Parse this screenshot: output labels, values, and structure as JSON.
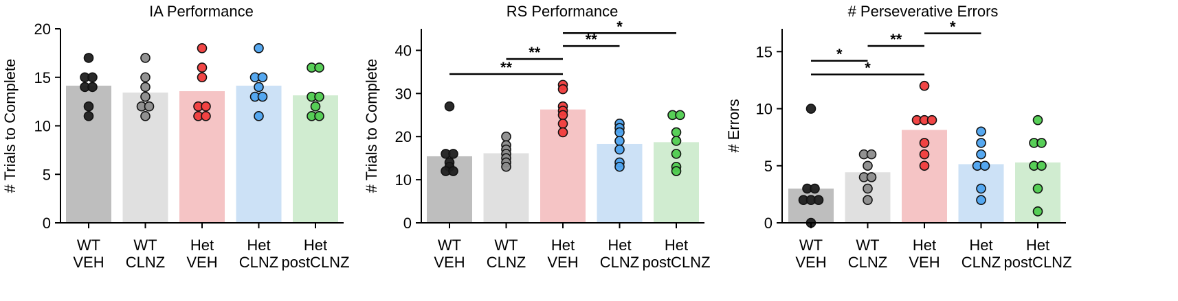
{
  "chart_data": [
    {
      "type": "bar",
      "title": "IA Performance",
      "ylabel": "# Trials to Complete",
      "xlabel": "",
      "ylim": [
        0,
        20
      ],
      "yticks": [
        0,
        5,
        10,
        15,
        20
      ],
      "categories": [
        [
          "WT",
          "VEH"
        ],
        [
          "WT",
          "CLNZ"
        ],
        [
          "Het",
          "VEH"
        ],
        [
          "Het",
          "CLNZ"
        ],
        [
          "Het",
          "postCLNZ"
        ]
      ],
      "values": [
        14.14,
        13.43,
        13.57,
        14.14,
        13.14
      ],
      "points": [
        [
          17,
          15,
          15,
          14,
          14,
          12,
          11
        ],
        [
          17,
          15,
          14,
          13,
          12,
          12,
          11
        ],
        [
          18,
          16,
          15,
          12,
          12,
          11,
          11
        ],
        [
          18,
          15,
          15,
          14,
          13,
          13,
          11
        ],
        [
          16,
          16,
          13,
          13,
          12,
          11,
          11
        ]
      ],
      "significance": []
    },
    {
      "type": "bar",
      "title": "RS Performance",
      "ylabel": "# Trials to Complete",
      "xlabel": "",
      "ylim": [
        0,
        45
      ],
      "yticks": [
        0,
        10,
        20,
        30,
        40
      ],
      "categories": [
        [
          "WT",
          "VEH"
        ],
        [
          "WT",
          "CLNZ"
        ],
        [
          "Het",
          "VEH"
        ],
        [
          "Het",
          "CLNZ"
        ],
        [
          "Het",
          "postCLNZ"
        ]
      ],
      "values": [
        15.43,
        16.14,
        26.29,
        18.29,
        18.71
      ],
      "points": [
        [
          27,
          16,
          16,
          14,
          13,
          12,
          12
        ],
        [
          20,
          18,
          17,
          16,
          15,
          14,
          13
        ],
        [
          32,
          31,
          27,
          26,
          25,
          23,
          21
        ],
        [
          23,
          22,
          21,
          19,
          17,
          14,
          13
        ],
        [
          25,
          25,
          21,
          19,
          16,
          13,
          12
        ]
      ],
      "significance": [
        {
          "from": 0,
          "to": 2,
          "y": 34.5,
          "label": "**"
        },
        {
          "from": 1,
          "to": 2,
          "y": 38.0,
          "label": "**"
        },
        {
          "from": 2,
          "to": 3,
          "y": 41.0,
          "label": "**"
        },
        {
          "from": 2,
          "to": 4,
          "y": 44.0,
          "label": "*"
        }
      ]
    },
    {
      "type": "bar",
      "title": "# Perseverative Errors",
      "ylabel": "# Errors",
      "xlabel": "",
      "ylim": [
        0,
        17
      ],
      "yticks": [
        0,
        5,
        10,
        15
      ],
      "categories": [
        [
          "WT",
          "VEH"
        ],
        [
          "WT",
          "CLNZ"
        ],
        [
          "Het",
          "VEH"
        ],
        [
          "Het",
          "CLNZ"
        ],
        [
          "Het",
          "postCLNZ"
        ]
      ],
      "values": [
        3.0,
        4.43,
        8.14,
        5.14,
        5.29
      ],
      "points": [
        [
          10,
          3,
          3,
          2,
          2,
          2,
          0
        ],
        [
          6,
          6,
          5,
          4,
          4,
          3,
          2
        ],
        [
          12,
          9,
          9,
          9,
          7,
          6,
          5
        ],
        [
          8,
          7,
          6,
          5,
          5,
          3,
          2
        ],
        [
          9,
          7,
          7,
          5,
          5,
          3,
          1
        ]
      ],
      "significance": [
        {
          "from": 0,
          "to": 2,
          "y": 13.0,
          "label": "*"
        },
        {
          "from": 0,
          "to": 1,
          "y": 14.2,
          "label": "*"
        },
        {
          "from": 1,
          "to": 2,
          "y": 15.5,
          "label": "**"
        },
        {
          "from": 2,
          "to": 3,
          "y": 16.6,
          "label": "*"
        }
      ]
    }
  ],
  "colors": {
    "bars": [
      "#bebebe",
      "#e0e0e0",
      "#f5c4c5",
      "#cce1f6",
      "#d0ecd0"
    ],
    "points": [
      "#1f1f1f",
      "#8c8c8c",
      "#f03c3c",
      "#4da3ef",
      "#4fcc4f"
    ]
  }
}
